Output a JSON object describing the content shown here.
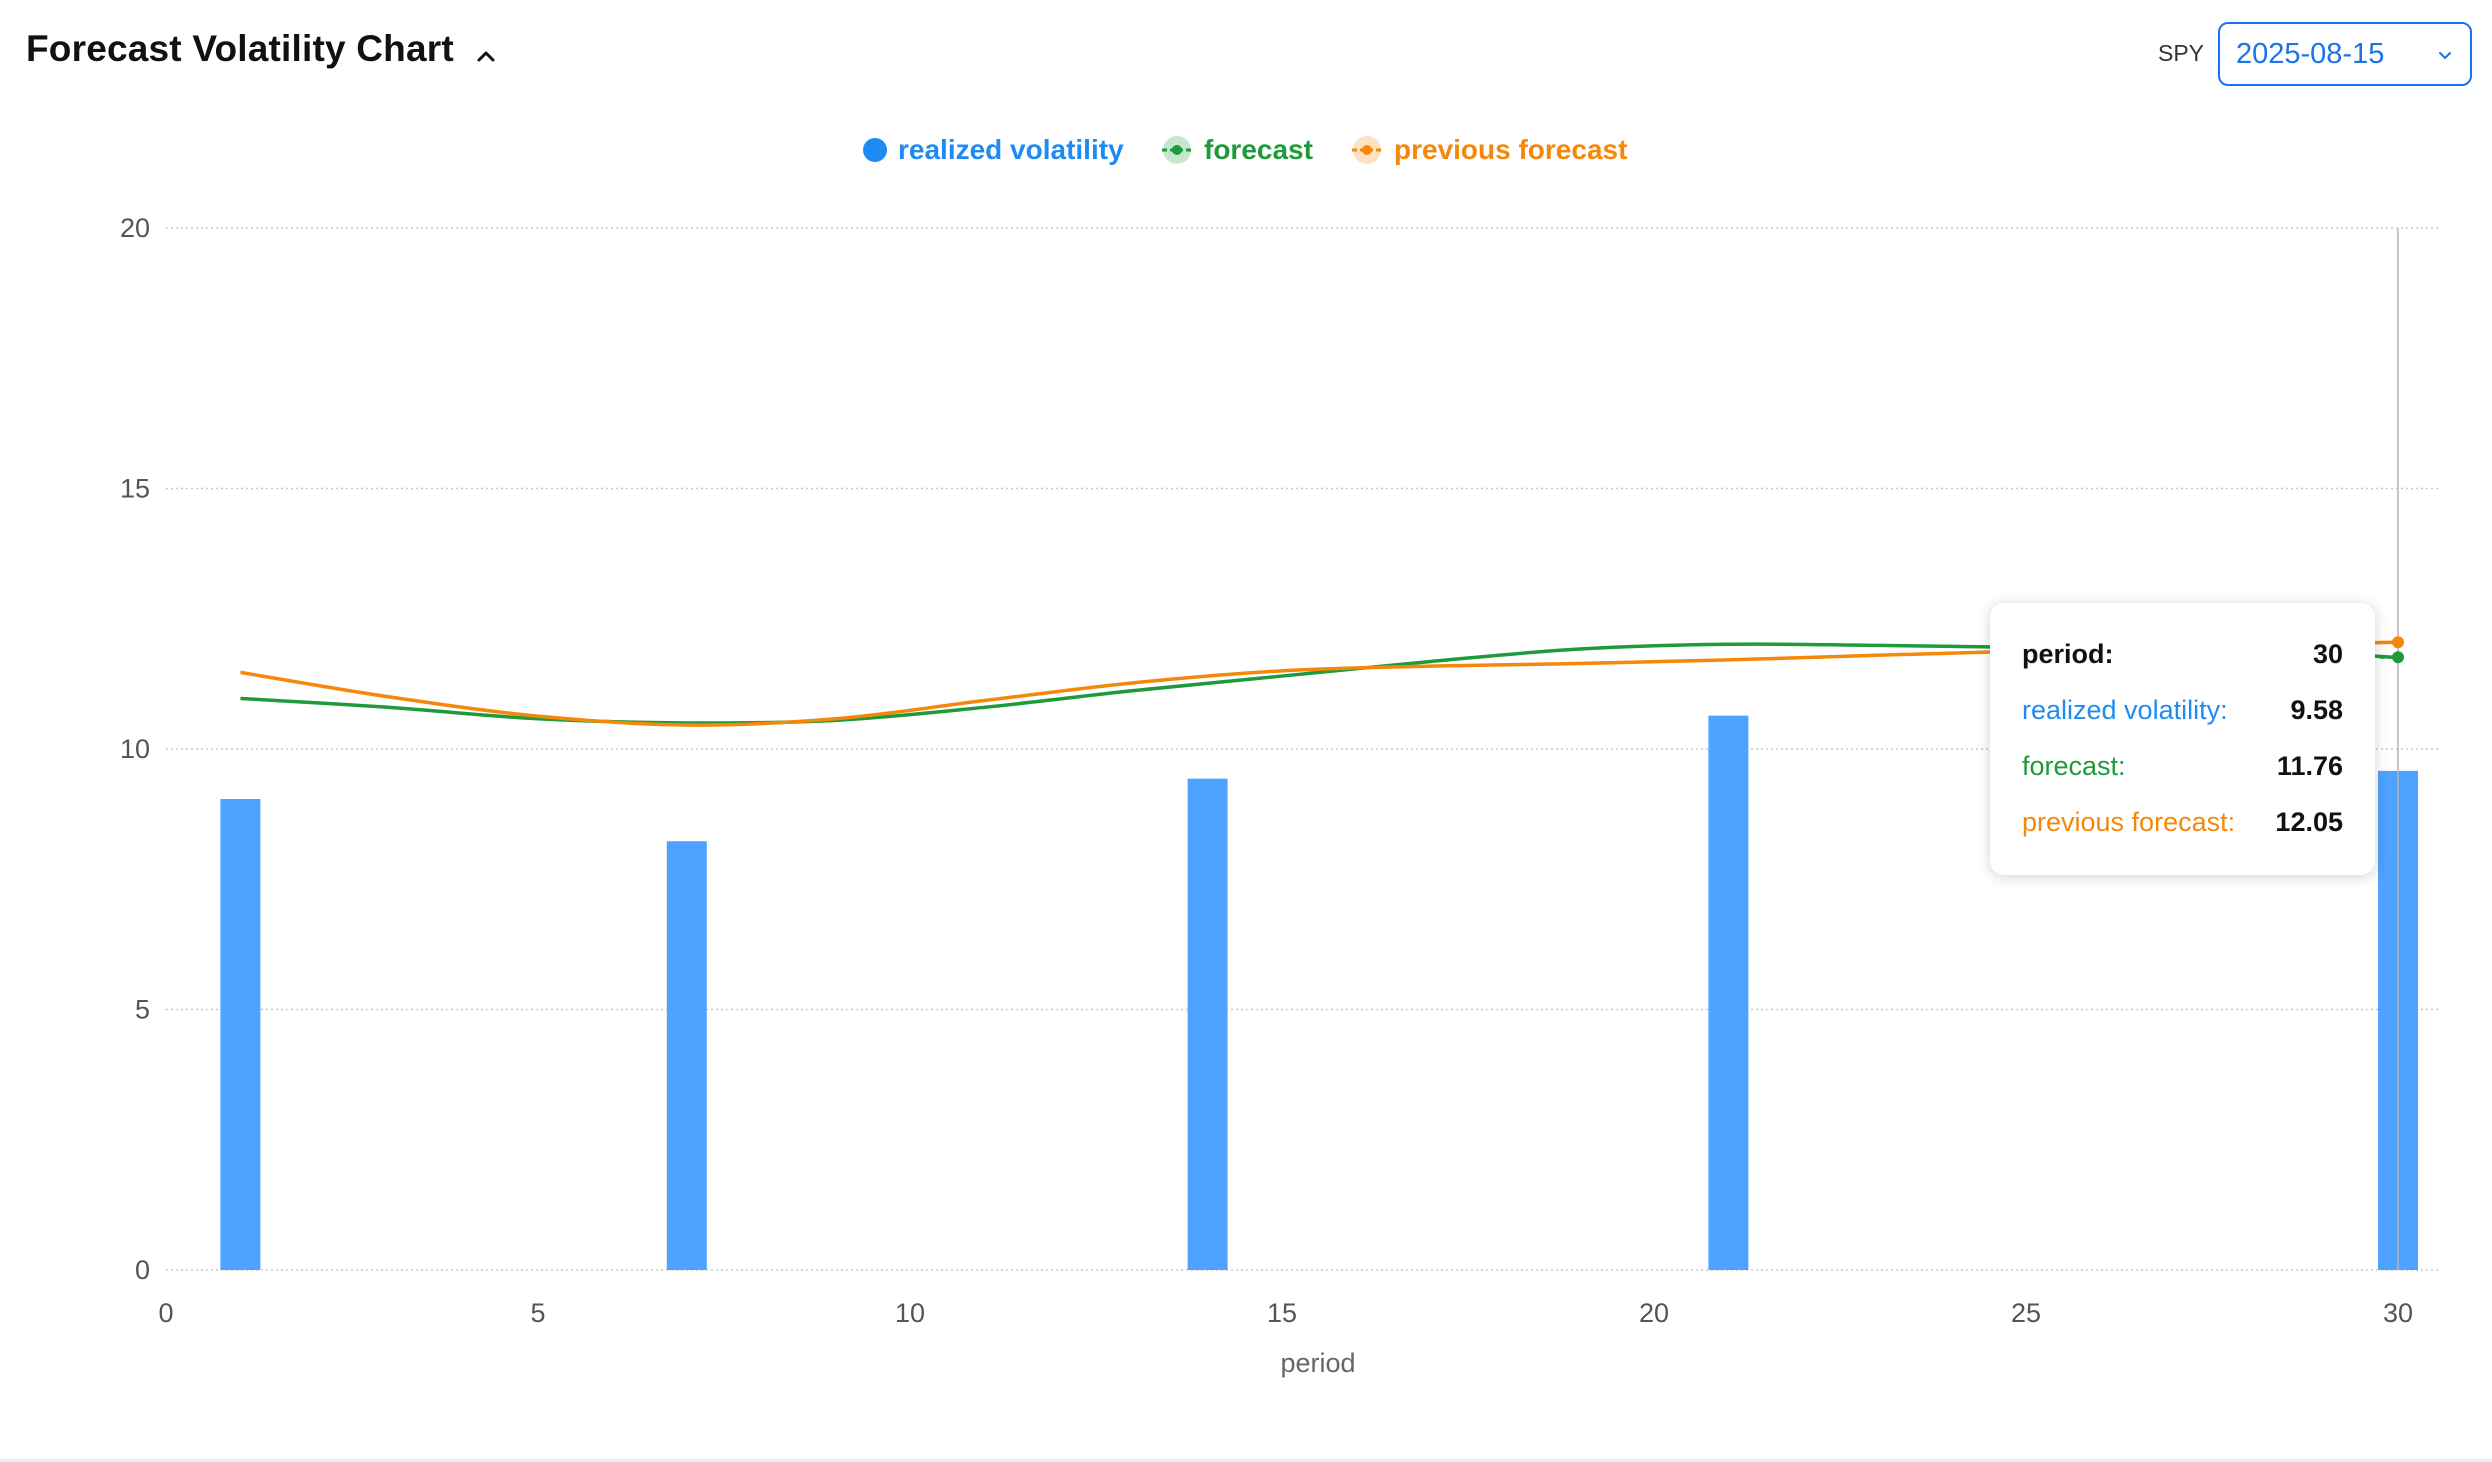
{
  "header": {
    "title": "Forecast Volatility Chart",
    "ticker": "SPY",
    "date_selected": "2025-08-15"
  },
  "colors": {
    "realized": "#4da3ff",
    "realized_legend": "#1e8bf2",
    "forecast": "#1f9a3a",
    "previous": "#f5870a",
    "grid": "#c8c8c8"
  },
  "legend": {
    "realized": "realized volatility",
    "forecast": "forecast",
    "previous": "previous forecast"
  },
  "tooltip": {
    "period_label": "period:",
    "period_value": "30",
    "realized_label": "realized volatility:",
    "realized_value": "9.58",
    "forecast_label": "forecast:",
    "forecast_value": "11.76",
    "previous_label": "previous forecast:",
    "previous_value": "12.05"
  },
  "chart_data": {
    "type": "bar",
    "title": "Forecast Volatility Chart",
    "xlabel": "period",
    "ylabel": "",
    "xlim": [
      0,
      30
    ],
    "ylim": [
      0,
      20
    ],
    "x_ticks": [
      0,
      5,
      10,
      15,
      20,
      25,
      30
    ],
    "y_ticks": [
      0,
      5,
      10,
      15,
      20
    ],
    "grid": true,
    "legend_position": "top-center",
    "bars": {
      "name": "realized volatility",
      "x": [
        1,
        7,
        14,
        21,
        30
      ],
      "values": [
        9.04,
        8.23,
        9.43,
        10.64,
        9.58
      ]
    },
    "series": [
      {
        "name": "forecast",
        "type": "line",
        "x": [
          1,
          3,
          5,
          7,
          9,
          11,
          13,
          15,
          17,
          19,
          21,
          23,
          25,
          27,
          29,
          30
        ],
        "values": [
          10.97,
          10.8,
          10.58,
          10.5,
          10.55,
          10.8,
          11.12,
          11.4,
          11.68,
          11.92,
          12.01,
          11.99,
          11.95,
          11.88,
          11.82,
          11.76
        ]
      },
      {
        "name": "previous forecast",
        "type": "line",
        "x": [
          1,
          3,
          5,
          7,
          9,
          11,
          13,
          15,
          17,
          19,
          21,
          23,
          25,
          27,
          29,
          30
        ],
        "values": [
          11.47,
          11.0,
          10.63,
          10.46,
          10.58,
          10.93,
          11.27,
          11.5,
          11.59,
          11.64,
          11.71,
          11.8,
          11.88,
          11.95,
          12.02,
          12.05
        ]
      }
    ]
  }
}
